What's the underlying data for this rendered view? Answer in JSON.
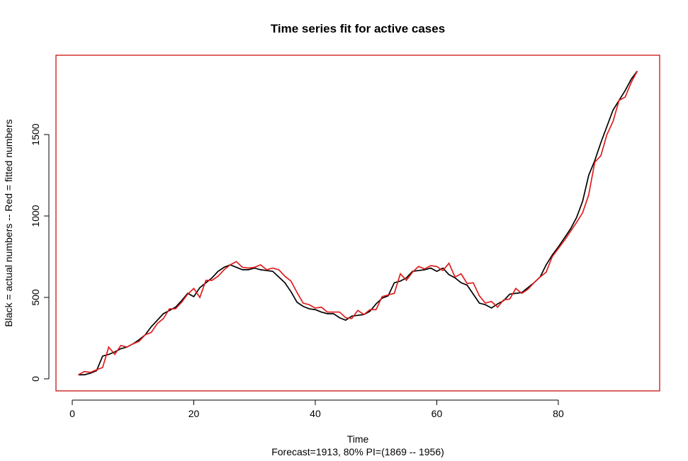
{
  "chart_data": {
    "type": "line",
    "title": "Time series fit for active cases",
    "xlabel": "Time",
    "ylabel": "Black = actual numbers -- Red = fitted numbers",
    "subtitle": "Forecast=1913, 80% PI=(1869 -- 1956)",
    "x": [
      1,
      2,
      3,
      4,
      5,
      6,
      7,
      8,
      9,
      10,
      11,
      12,
      13,
      14,
      15,
      16,
      17,
      18,
      19,
      20,
      21,
      22,
      23,
      24,
      25,
      26,
      27,
      28,
      29,
      30,
      31,
      32,
      33,
      34,
      35,
      36,
      37,
      38,
      39,
      40,
      41,
      42,
      43,
      44,
      45,
      46,
      47,
      48,
      49,
      50,
      51,
      52,
      53,
      54,
      55,
      56,
      57,
      58,
      59,
      60,
      61,
      62,
      63,
      64,
      65,
      66,
      67,
      68,
      69,
      70,
      71,
      72,
      73,
      74,
      75,
      76,
      77,
      78,
      79,
      80,
      81,
      82,
      83,
      84,
      85,
      86,
      87,
      88,
      89,
      90,
      91,
      92,
      93
    ],
    "series": [
      {
        "color": "#000000",
        "values": [
          25,
          25,
          35,
          50,
          140,
          150,
          165,
          185,
          195,
          215,
          240,
          270,
          320,
          360,
          400,
          420,
          440,
          480,
          525,
          505,
          560,
          590,
          620,
          660,
          685,
          700,
          685,
          670,
          670,
          680,
          670,
          665,
          660,
          625,
          590,
          535,
          470,
          445,
          430,
          425,
          410,
          400,
          400,
          375,
          360,
          385,
          390,
          395,
          415,
          460,
          495,
          510,
          590,
          600,
          620,
          660,
          665,
          670,
          680,
          660,
          680,
          640,
          620,
          590,
          575,
          520,
          465,
          455,
          435,
          460,
          480,
          520,
          525,
          530,
          560,
          590,
          625,
          700,
          760,
          810,
          865,
          920,
          990,
          1090,
          1250,
          1340,
          1450,
          1550,
          1650,
          1710,
          1770,
          1840,
          1890
        ]
      },
      {
        "color": "#df1c1c",
        "values": [
          25,
          45,
          40,
          55,
          70,
          195,
          150,
          205,
          195,
          215,
          230,
          270,
          285,
          340,
          370,
          430,
          430,
          470,
          520,
          555,
          500,
          605,
          605,
          630,
          670,
          700,
          720,
          685,
          680,
          685,
          700,
          670,
          680,
          670,
          630,
          600,
          530,
          465,
          455,
          435,
          440,
          410,
          410,
          410,
          375,
          370,
          420,
          395,
          425,
          425,
          505,
          515,
          525,
          645,
          605,
          655,
          690,
          675,
          695,
          690,
          665,
          710,
          625,
          645,
          585,
          590,
          510,
          465,
          475,
          440,
          485,
          490,
          555,
          525,
          550,
          590,
          625,
          655,
          750,
          800,
          850,
          905,
          960,
          1020,
          1130,
          1330,
          1370,
          1500,
          1580,
          1710,
          1730,
          1820,
          1890
        ]
      }
    ],
    "xlim": [
      -2.68,
      96.68
    ],
    "ylim": [
      -74,
      1987
    ],
    "xticks": [
      0,
      20,
      40,
      60,
      80
    ],
    "yticks": [
      0,
      500,
      1000,
      1500
    ],
    "box_color": "#cc1111"
  }
}
